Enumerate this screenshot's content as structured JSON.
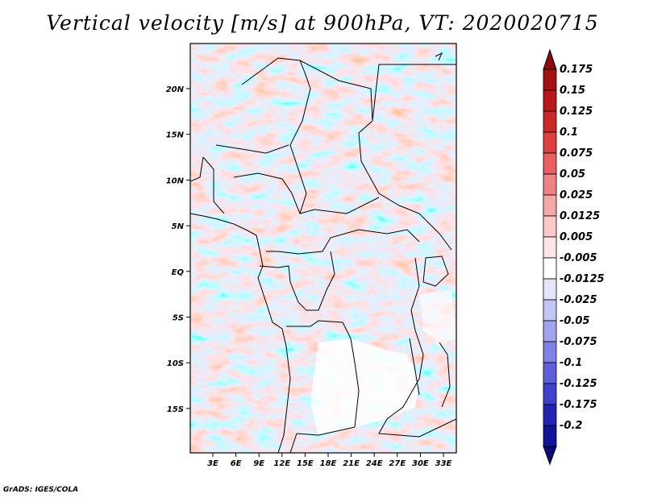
{
  "title": "Vertical velocity [m/s] at 900hPa, VT: 2020020715",
  "credit": "GrADS: IGES/COLA",
  "map": {
    "lon_ticks": [
      "3E",
      "6E",
      "9E",
      "12E",
      "15E",
      "18E",
      "21E",
      "24E",
      "27E",
      "30E",
      "33E"
    ],
    "lat_ticks": [
      "20N",
      "15N",
      "10N",
      "5N",
      "EQ",
      "5S",
      "10S",
      "15S"
    ]
  },
  "colorbar": {
    "labels": [
      "0.175",
      "0.15",
      "0.125",
      "0.1",
      "0.075",
      "0.05",
      "0.025",
      "0.0125",
      "0.005",
      "-0.005",
      "-0.0125",
      "-0.025",
      "-0.05",
      "-0.075",
      "-0.1",
      "-0.125",
      "-0.175",
      "-0.2"
    ],
    "colors": [
      "#a31212",
      "#b81818",
      "#cd2828",
      "#de3f3f",
      "#e86060",
      "#ef8282",
      "#f5a8a8",
      "#fac8c8",
      "#fde6e6",
      "#ffffff",
      "#e4e4fb",
      "#c4c4f5",
      "#a2a2ee",
      "#8080e6",
      "#5f5fdc",
      "#4040cc",
      "#2424b4",
      "#12129a"
    ],
    "low_arrow_color": "#0a0a78",
    "high_arrow_color": "#8a0c0c"
  }
}
